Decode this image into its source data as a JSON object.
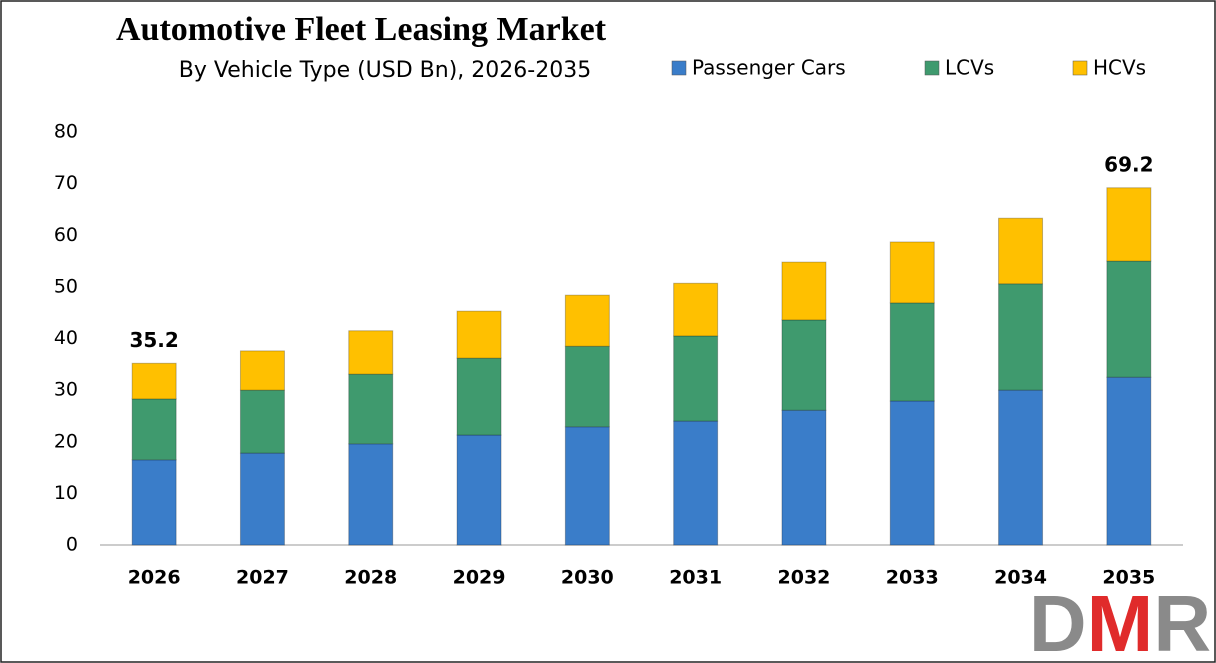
{
  "chart_data": {
    "type": "stacked_bar",
    "title": "Automotive Fleet Leasing Market",
    "subtitle": "By Vehicle Type (USD Bn), 2026-2035",
    "categories": [
      "2026",
      "2027",
      "2028",
      "2029",
      "2030",
      "2031",
      "2032",
      "2033",
      "2034",
      "2035"
    ],
    "series": [
      {
        "name": "Passenger Cars",
        "color": "#3a7dc9",
        "values": [
          16.5,
          17.8,
          19.6,
          21.3,
          22.9,
          24.0,
          26.1,
          27.9,
          30.0,
          32.5
        ]
      },
      {
        "name": "LCVs",
        "color": "#3f9a6e",
        "values": [
          11.8,
          12.2,
          13.5,
          14.9,
          15.6,
          16.5,
          17.5,
          19.0,
          20.6,
          22.5
        ]
      },
      {
        "name": "HCVs",
        "color": "#ffc000",
        "values": [
          6.9,
          7.6,
          8.4,
          9.1,
          9.9,
          10.2,
          11.2,
          11.8,
          12.7,
          14.2
        ]
      }
    ],
    "annotations": [
      {
        "category": "2026",
        "value": 35.2
      },
      {
        "category": "2035",
        "value": 69.2
      }
    ],
    "ylim": [
      0,
      80
    ],
    "yticks": [
      0,
      10,
      20,
      30,
      40,
      50,
      60,
      70,
      80
    ],
    "grid": false,
    "logo": "DMR"
  }
}
